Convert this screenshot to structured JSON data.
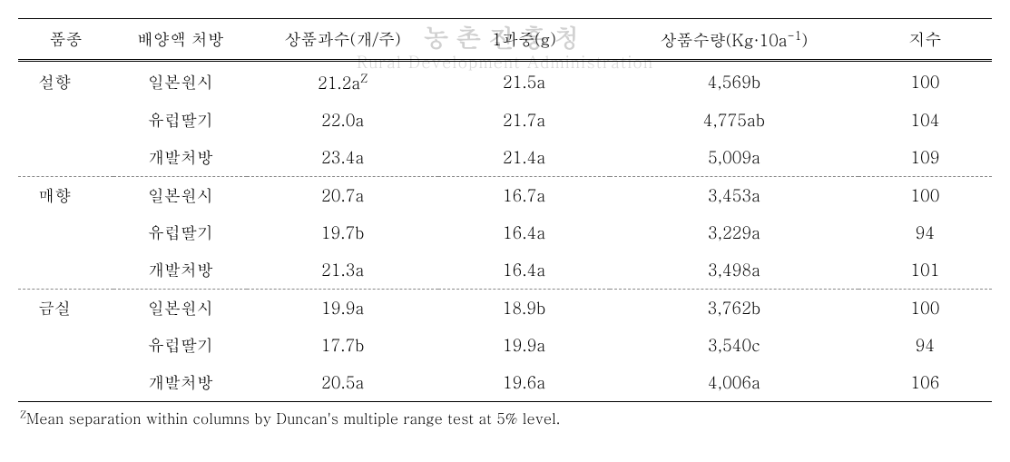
{
  "watermark": {
    "line1": "농촌진흥청",
    "line2": "Rural Development Administration"
  },
  "headers": {
    "variety": "품종",
    "treatment": "배양액 처방",
    "fruit_count": "상품과수(개/주)",
    "fruit_weight": "1과중(g)",
    "yield_pre": "상품수량(Kg·10a",
    "yield_sup": "-1",
    "yield_post": ")",
    "index": "지수"
  },
  "groups": [
    {
      "variety": "설향",
      "rows": [
        {
          "treatment": "일본원시",
          "count": "21.2a",
          "count_sup": "Z",
          "weight": "21.5a",
          "yield": "4,569b",
          "index": "100"
        },
        {
          "treatment": "유럽딸기",
          "count": "22.0a",
          "weight": "21.7a",
          "yield": "4,775ab",
          "index": "104"
        },
        {
          "treatment": "개발처방",
          "count": "23.4a",
          "weight": "21.4a",
          "yield": "5,009a",
          "index": "109"
        }
      ]
    },
    {
      "variety": "매향",
      "rows": [
        {
          "treatment": "일본원시",
          "count": "20.7a",
          "weight": "16.7a",
          "yield": "3,453a",
          "index": "100"
        },
        {
          "treatment": "유럽딸기",
          "count": "19.7b",
          "weight": "16.4a",
          "yield": "3,229a",
          "index": "94"
        },
        {
          "treatment": "개발처방",
          "count": "21.3a",
          "weight": "16.4a",
          "yield": "3,498a",
          "index": "101"
        }
      ]
    },
    {
      "variety": "금실",
      "rows": [
        {
          "treatment": "일본원시",
          "count": "19.9a",
          "weight": "18.9b",
          "yield": "3,762b",
          "index": "100"
        },
        {
          "treatment": "유럽딸기",
          "count": "17.7b",
          "weight": "19.9a",
          "yield": "3,540c",
          "index": "94"
        },
        {
          "treatment": "개발처방",
          "count": "20.5a",
          "weight": "19.6a",
          "yield": "4,006a",
          "index": "106"
        }
      ]
    }
  ],
  "footnote": {
    "sup": "Z",
    "text": "Mean separation within columns by Duncan's multiple range test at 5% level."
  }
}
